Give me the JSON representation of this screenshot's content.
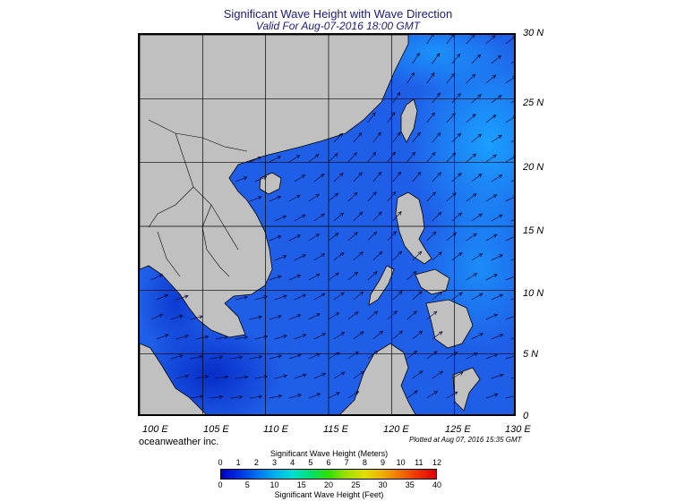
{
  "title": "Significant Wave Height with Wave Direction",
  "subtitle": "Valid For Aug-07-2016 18:00 GMT",
  "latitude_labels": [
    "30 N",
    "25 N",
    "20 N",
    "15 N",
    "10 N",
    "5 N",
    "0"
  ],
  "longitude_labels": [
    "100 E",
    "105 E",
    "110 E",
    "115 E",
    "120 E",
    "125 E",
    "130 E"
  ],
  "credit": "oceanweather inc.",
  "plotted_note": "Plotted at Aug 07, 2016 15:35 GMT",
  "legend": {
    "meters_title": "Significant Wave Height (Meters)",
    "meters_ticks": [
      "0",
      "1",
      "2",
      "3",
      "4",
      "5",
      "6",
      "7",
      "8",
      "9",
      "10",
      "11",
      "12"
    ],
    "feet_title": "Significant Wave Height (Feet)",
    "feet_ticks": [
      "0",
      "5",
      "10",
      "15",
      "20",
      "25",
      "30",
      "35",
      "40"
    ],
    "colors": [
      "#0000c8",
      "#0030e0",
      "#0070f0",
      "#00b0f0",
      "#00e0d0",
      "#00e070",
      "#30e000",
      "#a0e000",
      "#e0e000",
      "#f0b000",
      "#f07000",
      "#f03000",
      "#e00000"
    ]
  },
  "map_colors": {
    "land": "#c0c0c0",
    "sea": "#1f5fe8",
    "grid": "#000000",
    "arrows": "#0a0a3c"
  }
}
